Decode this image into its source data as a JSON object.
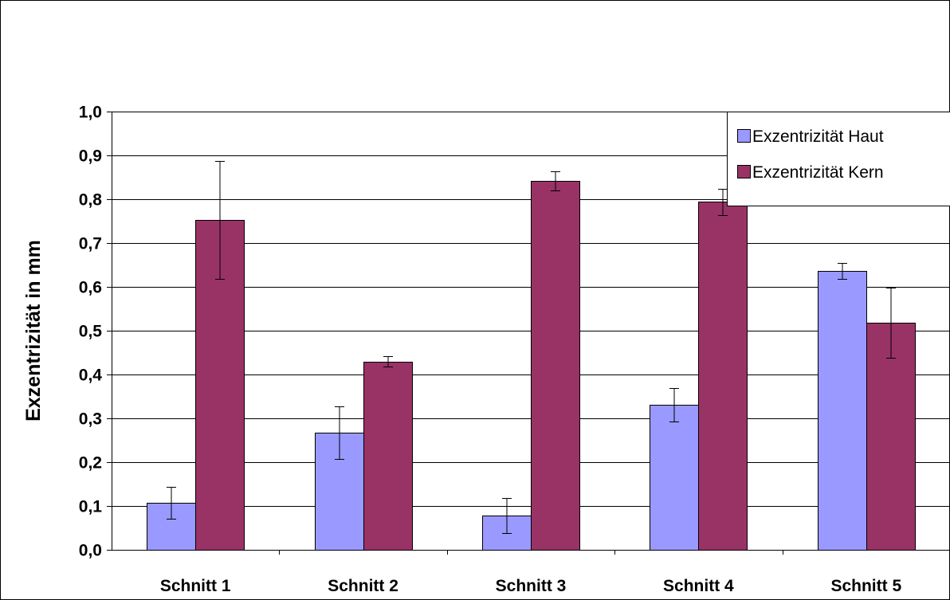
{
  "chart_data": {
    "type": "bar",
    "categories": [
      "Schnitt 1",
      "Schnitt 2",
      "Schnitt 3",
      "Schnitt 4",
      "Schnitt 5"
    ],
    "series": [
      {
        "name": "Exzentrizität Haut",
        "values": [
          0.107,
          0.268,
          0.079,
          0.331,
          0.636
        ],
        "errors": [
          0.036,
          0.06,
          0.04,
          0.038,
          0.018
        ],
        "color": "#9999ff"
      },
      {
        "name": "Exzentrizität Kern",
        "values": [
          0.753,
          0.43,
          0.842,
          0.794,
          0.519
        ],
        "errors": [
          0.134,
          0.012,
          0.022,
          0.03,
          0.08
        ],
        "color": "#993366"
      }
    ],
    "ylabel": "Exzentrizität in mm",
    "ylim": [
      0,
      1.0
    ],
    "yticks": [
      "0,0",
      "0,1",
      "0,2",
      "0,3",
      "0,4",
      "0,5",
      "0,6",
      "0,7",
      "0,8",
      "0,9",
      "1,0"
    ],
    "grid": true,
    "legend_position": "top-right"
  }
}
